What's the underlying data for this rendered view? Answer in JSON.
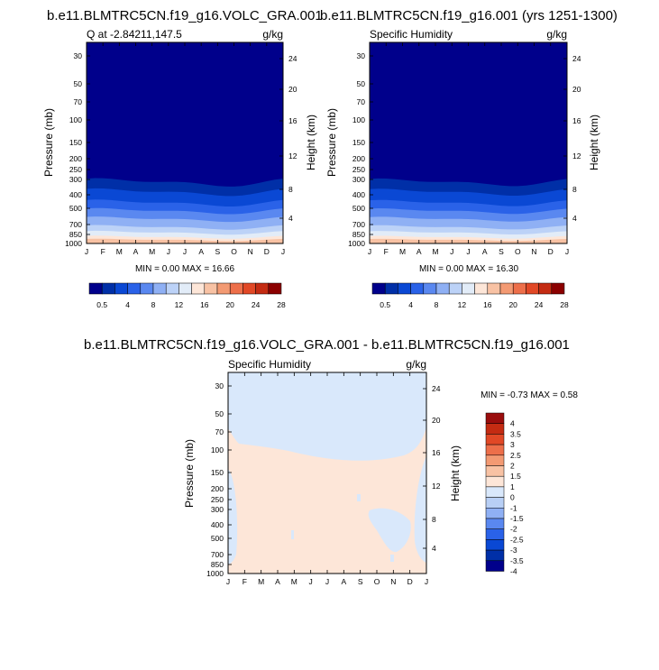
{
  "chart_data": [
    {
      "type": "heatmap",
      "title": "b.e11.BLMTRC5CN.f19_g16.VOLC_GRA.001",
      "left_label": "Q at -2.84211,147.5",
      "right_label": "g/kg",
      "ylabel": "Pressure (mb)",
      "y2label": "Height (km)",
      "x_ticks": [
        "J",
        "F",
        "M",
        "A",
        "M",
        "J",
        "J",
        "A",
        "S",
        "O",
        "N",
        "D",
        "J"
      ],
      "y_ticks": [
        "30",
        "50",
        "70",
        "100",
        "150",
        "200",
        "250",
        "300",
        "400",
        "500",
        "700",
        "850",
        "1000"
      ],
      "y2_ticks": [
        "24",
        "20",
        "16",
        "12",
        "8",
        "4"
      ],
      "stats": "MIN =  0.00 MAX =  16.66",
      "min": 0.0,
      "max": 16.66,
      "colorbar_labels": [
        "0.5",
        "4",
        "8",
        "12",
        "16",
        "20",
        "24",
        "28"
      ]
    },
    {
      "type": "heatmap",
      "title": "b.e11.BLMTRC5CN.f19_g16.001 (yrs 1251-1300)",
      "left_label": "Specific Humidity",
      "right_label": "g/kg",
      "ylabel": "Pressure (mb)",
      "y2label": "Height (km)",
      "x_ticks": [
        "J",
        "F",
        "M",
        "A",
        "M",
        "J",
        "J",
        "A",
        "S",
        "O",
        "N",
        "D",
        "J"
      ],
      "y_ticks": [
        "30",
        "50",
        "70",
        "100",
        "150",
        "200",
        "250",
        "300",
        "400",
        "500",
        "700",
        "850",
        "1000"
      ],
      "y2_ticks": [
        "24",
        "20",
        "16",
        "12",
        "8",
        "4"
      ],
      "stats": "MIN =  0.00 MAX =  16.30",
      "min": 0.0,
      "max": 16.3,
      "colorbar_labels": [
        "0.5",
        "4",
        "8",
        "12",
        "16",
        "20",
        "24",
        "28"
      ]
    },
    {
      "type": "heatmap",
      "title": "b.e11.BLMTRC5CN.f19_g16.VOLC_GRA.001 - b.e11.BLMTRC5CN.f19_g16.001",
      "left_label": "Specific Humidity",
      "right_label": "g/kg",
      "ylabel": "Pressure (mb)",
      "y2label": "Height (km)",
      "x_ticks": [
        "J",
        "F",
        "M",
        "A",
        "M",
        "J",
        "J",
        "A",
        "S",
        "O",
        "N",
        "D",
        "J"
      ],
      "y_ticks": [
        "30",
        "50",
        "70",
        "100",
        "150",
        "200",
        "250",
        "300",
        "400",
        "500",
        "700",
        "850",
        "1000"
      ],
      "y2_ticks": [
        "24",
        "20",
        "16",
        "12",
        "8",
        "4"
      ],
      "stats": "MIN =  -0.73 MAX =   0.58",
      "min": -0.73,
      "max": 0.58,
      "colorbar_labels": [
        "4",
        "3.5",
        "3",
        "2.5",
        "2",
        "1.5",
        "1",
        "0",
        "-1",
        "-1.5",
        "-2",
        "-2.5",
        "-3",
        "-3.5",
        "-4"
      ]
    }
  ],
  "colors": {
    "seq": [
      "#00008b",
      "#002fa7",
      "#0a48d4",
      "#2a62e8",
      "#5a88f0",
      "#8fb0f4",
      "#bcd2f7",
      "#e2ecf8",
      "#fde6d8",
      "#f8c2a4",
      "#f39a73",
      "#ed6f4a",
      "#e14826",
      "#c42b12",
      "#8b0000"
    ],
    "diff": [
      "#9a0d0d",
      "#c42b12",
      "#e14826",
      "#ed6f4a",
      "#f39a73",
      "#f8c2a4",
      "#fde6d8",
      "#d9e8fb",
      "#b8cff5",
      "#8fb0f4",
      "#5a88f0",
      "#2a62e8",
      "#0a48d4",
      "#002fa7",
      "#00008b"
    ],
    "diff_neg": "#d9e8fb",
    "diff_pos": "#fde6d8"
  }
}
